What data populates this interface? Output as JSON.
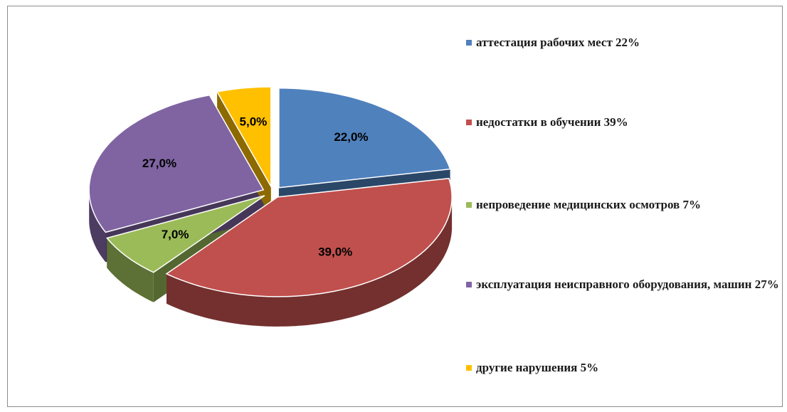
{
  "chart_data": {
    "type": "pie",
    "categories": [
      "аттестация рабочих мест 22%",
      "недостатки в обучении 39%",
      "непроведение медицинских осмотров 7%",
      "эксплуатация неисправного оборудования, машин 27%",
      "другие нарушения 5%"
    ],
    "values": [
      22,
      39,
      7,
      27,
      5
    ],
    "value_labels": [
      "22,0%",
      "39,0%",
      "7,0%",
      "27,0%",
      "5,0%"
    ],
    "colors": [
      "#4f81bd",
      "#c0504d",
      "#9bbb59",
      "#8064a2",
      "#ffc000"
    ],
    "legend": "right"
  }
}
